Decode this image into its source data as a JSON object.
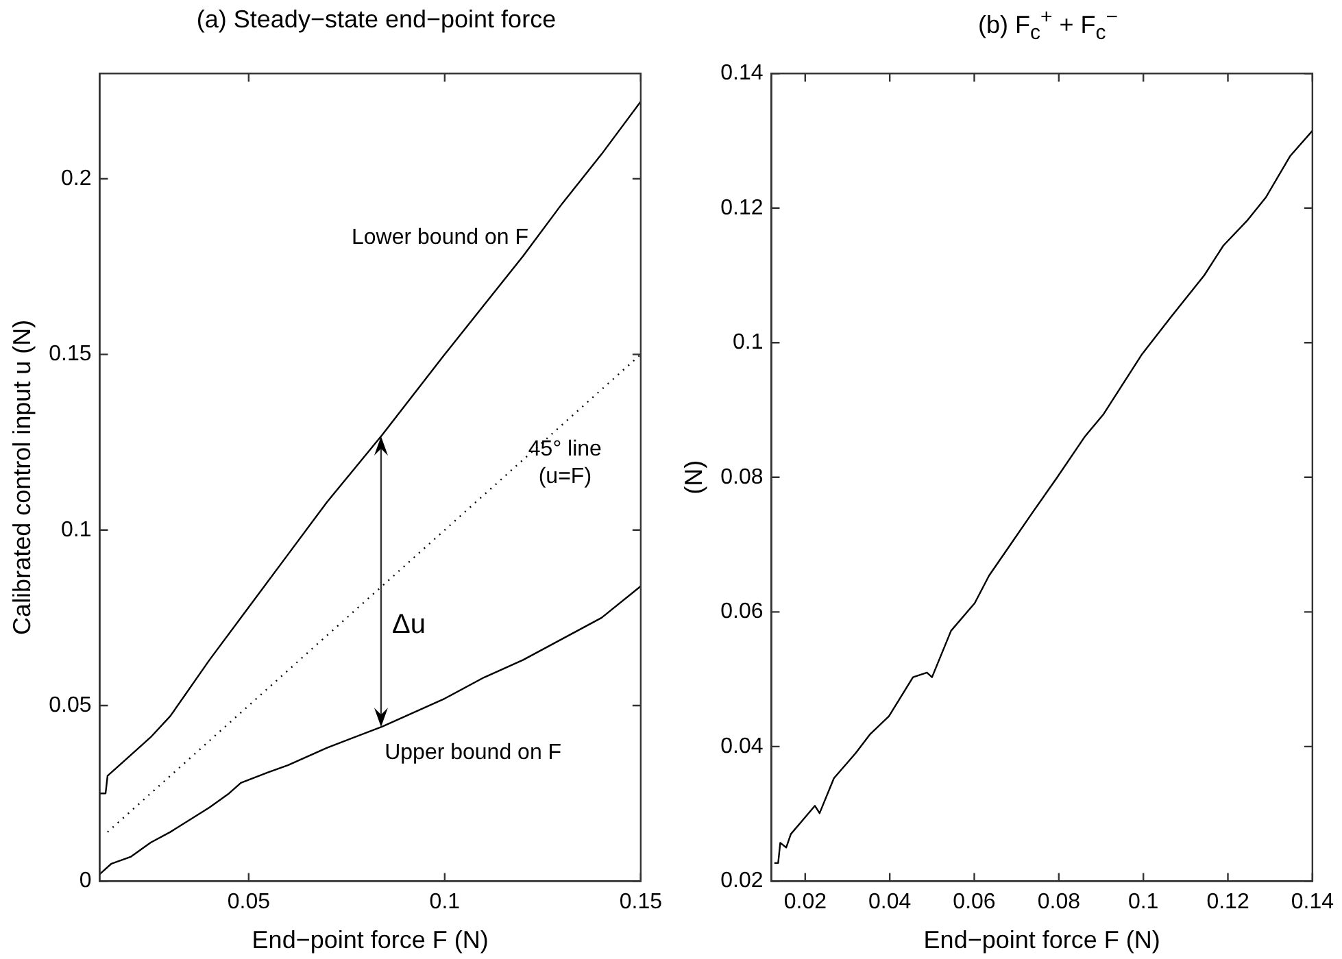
{
  "chart_data": [
    {
      "type": "line",
      "title": "(a) Steady−state end−point force",
      "xlabel": "End−point force F (N)",
      "ylabel": "Calibrated control input u (N)",
      "xlim": [
        0.012,
        0.15
      ],
      "ylim": [
        0,
        0.23
      ],
      "xticks": [
        0.05,
        0.1,
        0.15
      ],
      "yticks": [
        0,
        0.05,
        0.1,
        0.15,
        0.2
      ],
      "grid": false,
      "line_style": "solid",
      "series": [
        {
          "name": "Lower bound on F",
          "color": "#000000",
          "x": [
            0.012,
            0.0135,
            0.014,
            0.02,
            0.025,
            0.03,
            0.04,
            0.05,
            0.06,
            0.07,
            0.084,
            0.1,
            0.11,
            0.12,
            0.13,
            0.14,
            0.15
          ],
          "values": [
            0.025,
            0.025,
            0.03,
            0.036,
            0.041,
            0.047,
            0.063,
            0.078,
            0.093,
            0.108,
            0.127,
            0.15,
            0.164,
            0.178,
            0.193,
            0.207,
            0.222
          ]
        },
        {
          "name": "Upper bound on F",
          "color": "#000000",
          "x": [
            0.012,
            0.015,
            0.02,
            0.025,
            0.03,
            0.04,
            0.045,
            0.048,
            0.055,
            0.06,
            0.07,
            0.084,
            0.1,
            0.11,
            0.12,
            0.13,
            0.14,
            0.15
          ],
          "values": [
            0.002,
            0.005,
            0.007,
            0.011,
            0.014,
            0.021,
            0.025,
            0.028,
            0.031,
            0.033,
            0.038,
            0.044,
            0.052,
            0.058,
            0.063,
            0.069,
            0.075,
            0.084
          ]
        },
        {
          "name": "45° line (u=F)",
          "color": "#000000",
          "line_style": "dotted",
          "x": [
            0.014,
            0.15
          ],
          "values": [
            0.014,
            0.15
          ]
        }
      ],
      "annotations": [
        "Δu"
      ]
    },
    {
      "type": "line",
      "title": "(b) F$_{c}$$^{+}$ + F$_{c}$$^{−}$",
      "xlabel": "End−point force F (N)",
      "ylabel": "(N)",
      "xlim": [
        0.012,
        0.14
      ],
      "ylim": [
        0.02,
        0.14
      ],
      "xticks": [
        0.02,
        0.04,
        0.06,
        0.08,
        0.1,
        0.12,
        0.14
      ],
      "yticks": [
        0.02,
        0.04,
        0.06,
        0.08,
        0.1,
        0.12,
        0.14
      ],
      "grid": false,
      "line_style": "solid",
      "series": [
        {
          "color": "#000000",
          "x": [
            0.0127,
            0.0136,
            0.0141,
            0.0155,
            0.0166,
            0.02,
            0.0223,
            0.0234,
            0.0268,
            0.0319,
            0.0353,
            0.0398,
            0.0455,
            0.0488,
            0.05,
            0.0545,
            0.0601,
            0.0635,
            0.068,
            0.0737,
            0.0794,
            0.0861,
            0.0906,
            0.0997,
            0.1065,
            0.1144,
            0.1189,
            0.1245,
            0.129,
            0.1347,
            0.14
          ],
          "values": [
            0.0227,
            0.0227,
            0.0257,
            0.025,
            0.027,
            0.0295,
            0.0312,
            0.0301,
            0.0353,
            0.039,
            0.0418,
            0.0445,
            0.0503,
            0.051,
            0.0503,
            0.0572,
            0.0613,
            0.0654,
            0.0695,
            0.0747,
            0.0798,
            0.086,
            0.0894,
            0.0983,
            0.1038,
            0.11,
            0.1144,
            0.1181,
            0.1216,
            0.1277,
            0.1315
          ]
        }
      ]
    }
  ]
}
